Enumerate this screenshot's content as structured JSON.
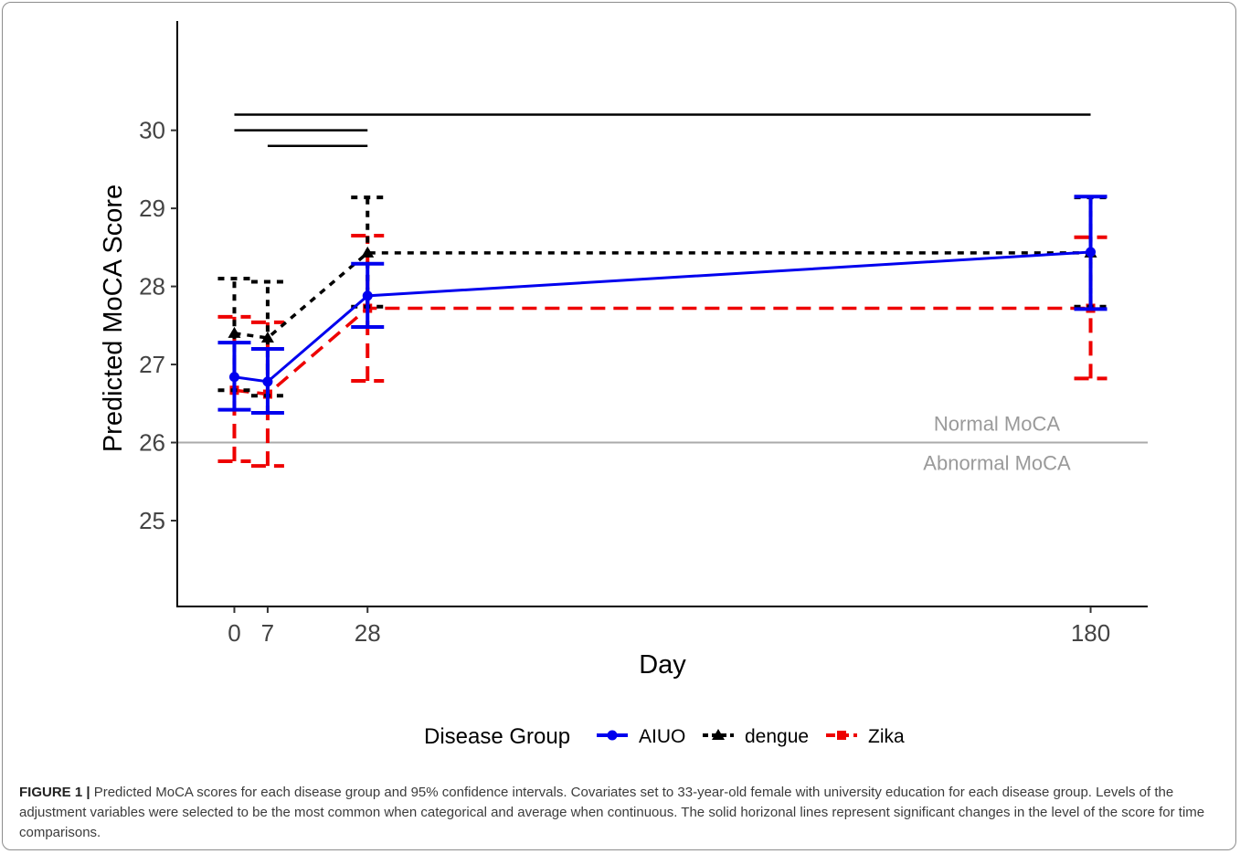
{
  "chart_data": {
    "type": "line",
    "x": [
      0,
      7,
      28,
      180
    ],
    "xticks": [
      "0",
      "7",
      "28",
      "180"
    ],
    "yticks": [
      "25",
      "26",
      "27",
      "28",
      "29",
      "30"
    ],
    "xlabel": "Day",
    "ylabel": "Predicted MoCA Score",
    "ylim": [
      23.9,
      31.4
    ],
    "xlim": [
      -12,
      192
    ],
    "legend_title": "Disease Group",
    "legend_position": "bottom",
    "grid": false,
    "series": [
      {
        "name": "AIUO",
        "color": "#0000ee",
        "line": "solid",
        "marker": "circle",
        "y": [
          26.84,
          26.78,
          27.88,
          28.44
        ],
        "lower": [
          26.42,
          26.38,
          27.48,
          27.71
        ],
        "upper": [
          27.28,
          27.2,
          28.29,
          29.15
        ]
      },
      {
        "name": "dengue",
        "color": "#000000",
        "line": "dotted",
        "marker": "triangle",
        "y": [
          27.4,
          27.34,
          28.43,
          28.43
        ],
        "lower": [
          26.67,
          26.6,
          27.74,
          27.74
        ],
        "upper": [
          28.1,
          28.06,
          29.14,
          29.14
        ]
      },
      {
        "name": "Zika",
        "color": "#ee0000",
        "line": "dashed",
        "marker": "square",
        "y": [
          26.67,
          26.62,
          27.72,
          27.72
        ],
        "lower": [
          25.76,
          25.7,
          26.79,
          26.82
        ],
        "upper": [
          27.61,
          27.54,
          28.65,
          28.63
        ]
      }
    ],
    "reference_line": {
      "y": 26,
      "color": "#aaaaaa",
      "label_above": "Normal MoCA",
      "label_below": "Abnormal MoCA"
    },
    "significance_bars": [
      {
        "x1": 0,
        "x2": 180,
        "y": 30.2
      },
      {
        "x1": 0,
        "x2": 28,
        "y": 30.0
      },
      {
        "x1": 7,
        "x2": 28,
        "y": 29.8
      }
    ]
  },
  "caption": {
    "label": "FIGURE 1 |",
    "text": "Predicted MoCA scores for each disease group and 95% confidence intervals. Covariates set to 33-year-old female with university education for each disease group. Levels of the adjustment variables were selected to be the most common when categorical and average when continuous. The solid horizonal lines represent significant changes in the level of the score for time comparisons."
  }
}
